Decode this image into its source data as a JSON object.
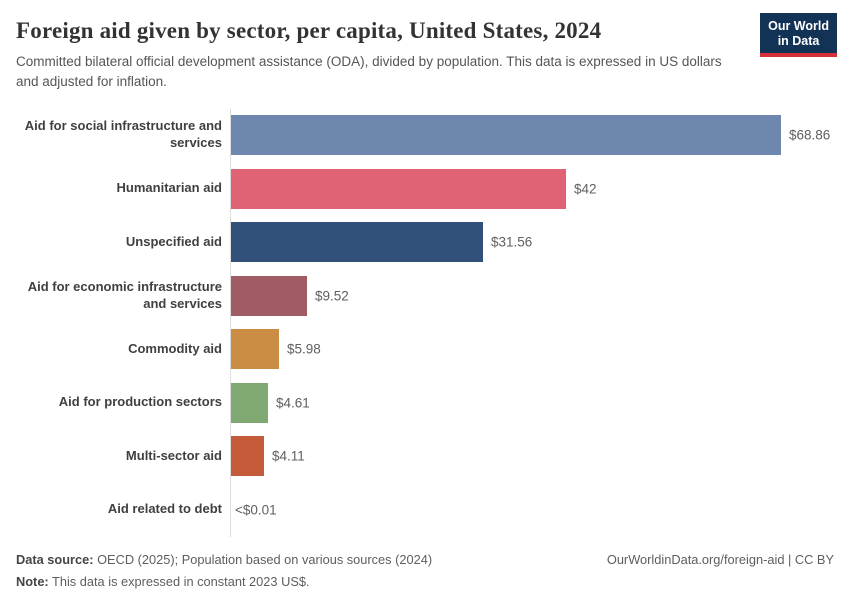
{
  "header": {
    "title": "Foreign aid given by sector, per capita, United States, 2024",
    "subtitle": "Committed bilateral official development assistance (ODA), divided by population. This data is expressed in US dollars and adjusted for inflation.",
    "logo": {
      "line1": "Our World",
      "line2": "in Data",
      "bg_color": "#133356",
      "accent_color": "#d4303a"
    }
  },
  "chart_data": {
    "type": "bar",
    "orientation": "horizontal",
    "title": "Foreign aid given by sector, per capita, United States, 2024",
    "xlabel": "",
    "ylabel": "",
    "xlim": [
      0,
      68.86
    ],
    "grid": false,
    "legend": false,
    "categories": [
      "Aid for social infrastructure and services",
      "Humanitarian aid",
      "Unspecified aid",
      "Aid for economic infrastructure and services",
      "Commodity aid",
      "Aid for production sectors",
      "Multi-sector aid",
      "Aid related to debt"
    ],
    "values": [
      68.86,
      42,
      31.56,
      9.52,
      5.98,
      4.61,
      4.11,
      0.005
    ],
    "value_labels": [
      "$68.86",
      "$42",
      "$31.56",
      "$9.52",
      "$5.98",
      "$4.61",
      "$4.11",
      "<$0.01"
    ],
    "bar_colors": [
      "#6e87ae",
      "#df6375",
      "#32517a",
      "#a15b64",
      "#cb8d43",
      "#80a873",
      "#c55b39",
      "#c55b39"
    ],
    "axis_line_color": "#dcdcdc"
  },
  "footer": {
    "source_label": "Data source:",
    "source_text": " OECD (2025); Population based on various sources (2024)",
    "note_label": "Note:",
    "note_text": " This data is expressed in constant 2023 US$.",
    "link": "OurWorldinData.org/foreign-aid | CC BY"
  }
}
